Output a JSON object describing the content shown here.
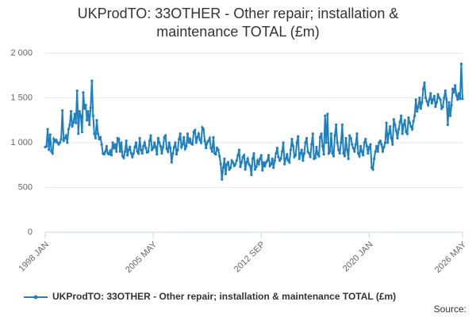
{
  "chart_data": {
    "type": "line",
    "title": "UKProdTO: 33OTHER - Other repair; installation & maintenance TOTAL (£m)",
    "source": "Source:",
    "categories": [
      "1998 JAN",
      null,
      null,
      null,
      null,
      null,
      null,
      null,
      null,
      null,
      null,
      null,
      null,
      null,
      null,
      null,
      null,
      null,
      null,
      null,
      null,
      null,
      null,
      null,
      null,
      null,
      null,
      null,
      null,
      null,
      null,
      null,
      null,
      null,
      null,
      null,
      null,
      null,
      null,
      null,
      null,
      null,
      null,
      null,
      null,
      null,
      null,
      null,
      null,
      null,
      null,
      null,
      null,
      null,
      null,
      null,
      null,
      null,
      null,
      null,
      null,
      null,
      null,
      null,
      null,
      null,
      null,
      null,
      null,
      null,
      null,
      null,
      null,
      null,
      null,
      null,
      null,
      null,
      null,
      null,
      null,
      null,
      null,
      null,
      null,
      null,
      null,
      null,
      "2005 MAY",
      null,
      null,
      null,
      null,
      null,
      null,
      null,
      null,
      null,
      null,
      null,
      null,
      null,
      null,
      null,
      null,
      null,
      null,
      null,
      null,
      null,
      null,
      null,
      null,
      null,
      null,
      null,
      null,
      null,
      null,
      null,
      null,
      null,
      null,
      null,
      null,
      null,
      null,
      null,
      null,
      null,
      null,
      null,
      null,
      null,
      null,
      null,
      null,
      null,
      null,
      null,
      null,
      null,
      null,
      null,
      null,
      null,
      null,
      null,
      null,
      null,
      null,
      null,
      null,
      null,
      null,
      null,
      null,
      null,
      null,
      null,
      null,
      null,
      null,
      null,
      null,
      null,
      null,
      null,
      null,
      null,
      null,
      null,
      null,
      null,
      null,
      null,
      "2012 SEP",
      null,
      null,
      null,
      null,
      null,
      null,
      null,
      null,
      null,
      null,
      null,
      null,
      null,
      null,
      null,
      null,
      null,
      null,
      null,
      null,
      null,
      null,
      null,
      null,
      null,
      null,
      null,
      null,
      null,
      null,
      null,
      null,
      null,
      null,
      null,
      null,
      null,
      null,
      null,
      null,
      null,
      null,
      null,
      null,
      null,
      null,
      null,
      null,
      null,
      null,
      null,
      null,
      null,
      null,
      null,
      null,
      null,
      null,
      null,
      null,
      null,
      null,
      null,
      null,
      null,
      null,
      null,
      null,
      null,
      null,
      null,
      null,
      null,
      null,
      null,
      null,
      null,
      null,
      null,
      null,
      null,
      null,
      null,
      null,
      null,
      null,
      null,
      "2020 JAN",
      null,
      null,
      null,
      null,
      null,
      null,
      null,
      null,
      null,
      null,
      null,
      null,
      null,
      null,
      null,
      null,
      null,
      null,
      null,
      null,
      null,
      null,
      null,
      null,
      null,
      null,
      null,
      null,
      null,
      null,
      null,
      null,
      null,
      null,
      null,
      null,
      null,
      null,
      null,
      null,
      null,
      null,
      null,
      null,
      null,
      null,
      null,
      null,
      null,
      null,
      null,
      null,
      null,
      null,
      null,
      null,
      null,
      null,
      null,
      null,
      null,
      null,
      null,
      null,
      null,
      null,
      null,
      null,
      null,
      null,
      null,
      null,
      null,
      null,
      null,
      "2026 MAY"
    ],
    "series": [
      {
        "name": "UKProdTO: 33OTHER - Other repair; installation & maintenance TOTAL (£m)",
        "color": "#1f7fbf",
        "values": [
          950,
          960,
          1150,
          920,
          1090,
          900,
          880,
          1040,
          1010,
          1030,
          1000,
          980,
          1000,
          1040,
          1360,
          1020,
          1050,
          1080,
          1000,
          1150,
          1200,
          1350,
          1180,
          1230,
          1320,
          1220,
          1580,
          1100,
          1350,
          1300,
          1120,
          1560,
          1380,
          1420,
          1250,
          1350,
          1200,
          1390,
          1690,
          1300,
          1100,
          1050,
          1250,
          1100,
          1040,
          1060,
          980,
          880,
          870,
          900,
          960,
          880,
          870,
          910,
          860,
          1000,
          940,
          980,
          900,
          1050,
          1040,
          900,
          1000,
          850,
          830,
          900,
          1020,
          860,
          920,
          950,
          880,
          840,
          880,
          950,
          1000,
          900,
          880,
          1050,
          920,
          880,
          960,
          1000,
          940,
          890,
          900,
          1020,
          1080,
          920,
          940,
          1000,
          950,
          870,
          1050,
          1000,
          960,
          880,
          950,
          1060,
          1080,
          930,
          900,
          1000,
          940,
          780,
          880,
          950,
          1000,
          870,
          920,
          1040,
          1100,
          950,
          980,
          1060,
          930,
          960,
          1100,
          1000,
          1040,
          990,
          980,
          1120,
          1140,
          1000,
          1060,
          1100,
          1030,
          1000,
          1170,
          1150,
          1020,
          940,
          1000,
          1020,
          1050,
          940,
          900,
          1060,
          880,
          870,
          940,
          920,
          850,
          760,
          590,
          720,
          820,
          650,
          760,
          780,
          700,
          720,
          800,
          780,
          740,
          760,
          800,
          860,
          920,
          730,
          780,
          840,
          860,
          700,
          780,
          820,
          760,
          740,
          640,
          820,
          880,
          700,
          730,
          800,
          760,
          820,
          860,
          690,
          780,
          740,
          780,
          800,
          860,
          740,
          760,
          820,
          720,
          800,
          880,
          940,
          840,
          800,
          820,
          900,
          1000,
          760,
          820,
          870,
          800,
          780,
          920,
          1040,
          960,
          840,
          860,
          1000,
          1070,
          820,
          880,
          920,
          800,
          880,
          1000,
          1050,
          900,
          880,
          840,
          980,
          1100,
          820,
          830,
          950,
          870,
          850,
          1060,
          1100,
          960,
          870,
          1300,
          1000,
          1320,
          880,
          900,
          1100,
          880,
          850,
          1080,
          1200,
          1000,
          920,
          880,
          1000,
          1200,
          880,
          850,
          1050,
          920,
          820,
          1080,
          1050,
          980,
          940,
          900,
          980,
          1100,
          880,
          850,
          960,
          900,
          860,
          1000,
          1040,
          960,
          880,
          950,
          980,
          720,
          700,
          820,
          900,
          960,
          900,
          1000,
          1020,
          980,
          900,
          950,
          1000,
          1220,
          1000,
          1100,
          1180,
          1050,
          980,
          1260,
          1200,
          1130,
          1050,
          1150,
          1230,
          1300,
          1100,
          1200,
          1250,
          1120,
          1100,
          1280,
          1220,
          1180,
          1150,
          1240,
          1300,
          1480,
          1350,
          1400,
          1500,
          1380,
          1450,
          1600,
          1670,
          1500,
          1460,
          1420,
          1480,
          1550,
          1440,
          1480,
          1520,
          1400,
          1450,
          1540,
          1500,
          1480,
          1380,
          1400,
          1500,
          1580,
          1480,
          1200,
          1450,
          1300,
          1420,
          1600,
          1560,
          1640,
          1530,
          1480,
          1550,
          1490,
          1880,
          1490
        ]
      }
    ],
    "ylim": [
      0,
      2000
    ],
    "yticks": [
      0,
      500,
      {
        "value": 1000,
        "label": "1 000"
      },
      {
        "value": 1500,
        "label": "1 500"
      },
      {
        "value": 2000,
        "label": "2 000"
      }
    ],
    "grid": true
  }
}
